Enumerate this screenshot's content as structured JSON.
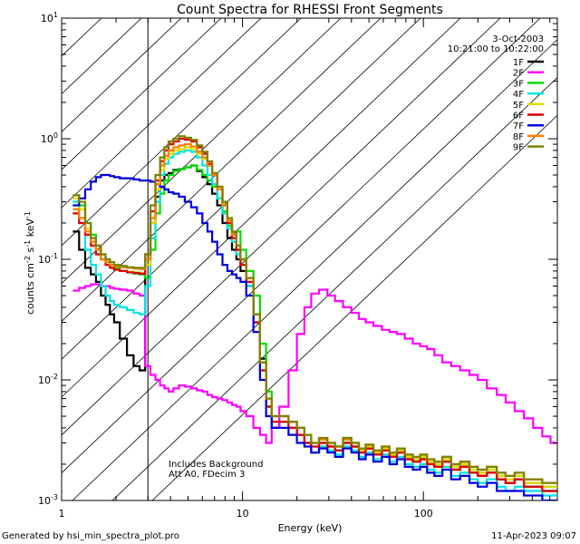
{
  "chart_data": {
    "type": "line",
    "title": "Count Spectra for RHESSI Front Segments",
    "xlabel": "Energy (keV)",
    "ylabel": {
      "base": "counts cm",
      "exp1": "-2",
      "mid1": " s",
      "exp2": "-1",
      "mid2": " keV",
      "exp3": "-1"
    },
    "xscale": "log",
    "yscale": "log",
    "xlim": [
      1,
      550
    ],
    "ylim": [
      0.001,
      10
    ],
    "x_ticks": [
      {
        "value": 1,
        "label": "1"
      },
      {
        "value": 10,
        "label": "10"
      },
      {
        "value": 100,
        "label": "100"
      }
    ],
    "y_ticks": [
      {
        "value": 0.001,
        "base": "10",
        "exp": "-3"
      },
      {
        "value": 0.01,
        "base": "10",
        "exp": "-2"
      },
      {
        "value": 0.1,
        "base": "10",
        "exp": "-1"
      },
      {
        "value": 1,
        "base": "10",
        "exp": "0"
      },
      {
        "value": 10,
        "base": "10",
        "exp": "1"
      }
    ],
    "hatched_region": {
      "x_from": 1,
      "x_to": 3
    },
    "header": {
      "date": "3-Oct-2003",
      "time_range": "10:21:00 to 10:22:00"
    },
    "annotation": {
      "line1": "Includes Background",
      "line2": "Att A0, FDecim 3"
    },
    "x": [
      1.2,
      1.3,
      1.4,
      1.5,
      1.6,
      1.7,
      1.8,
      1.9,
      2.0,
      2.2,
      2.4,
      2.6,
      2.8,
      3.0,
      3.2,
      3.4,
      3.6,
      3.8,
      4.0,
      4.3,
      4.6,
      5.0,
      5.4,
      5.8,
      6.2,
      6.6,
      7.0,
      7.5,
      8.0,
      8.5,
      9.0,
      9.5,
      10,
      11,
      12,
      13,
      14,
      15,
      17,
      19,
      21,
      23,
      25,
      28,
      31,
      34,
      38,
      42,
      46,
      50,
      56,
      62,
      68,
      75,
      83,
      92,
      100,
      110,
      120,
      135,
      150,
      170,
      190,
      210,
      240,
      270,
      300,
      340,
      380,
      430,
      480,
      530
    ],
    "series": [
      {
        "name": "1F",
        "color": "#000000",
        "values": [
          0.17,
          0.12,
          0.085,
          0.075,
          0.065,
          0.05,
          0.042,
          0.035,
          0.03,
          0.022,
          0.016,
          0.013,
          0.012,
          0.11,
          0.2,
          0.33,
          0.45,
          0.5,
          0.52,
          0.55,
          0.56,
          0.58,
          0.6,
          0.54,
          0.48,
          0.42,
          0.35,
          0.28,
          0.2,
          0.15,
          0.12,
          0.1,
          0.08,
          0.06,
          0.03,
          0.015,
          0.006,
          0.004,
          0.0045,
          0.004,
          0.0035,
          0.003,
          0.0025,
          0.003,
          0.0028,
          0.0026,
          0.003,
          0.0028,
          0.0025,
          0.0027,
          0.0024,
          0.0026,
          0.0023,
          0.0025,
          0.0022,
          0.0021,
          0.0022,
          0.002,
          0.0019,
          0.0021,
          0.0018,
          0.0019,
          0.0017,
          0.0016,
          0.0017,
          0.0015,
          0.0014,
          0.0015,
          0.0013,
          0.0013,
          0.0012,
          0.0012
        ]
      },
      {
        "name": "2F",
        "color": "#ff00ff",
        "values": [
          0.055,
          0.058,
          0.06,
          0.062,
          0.062,
          0.06,
          0.06,
          0.058,
          0.057,
          0.056,
          0.055,
          0.052,
          0.05,
          0.013,
          0.011,
          0.01,
          0.009,
          0.0085,
          0.008,
          0.0085,
          0.009,
          0.0088,
          0.0085,
          0.0082,
          0.008,
          0.0075,
          0.0072,
          0.007,
          0.0068,
          0.0065,
          0.0062,
          0.006,
          0.0055,
          0.005,
          0.004,
          0.0035,
          0.003,
          0.004,
          0.006,
          0.012,
          0.024,
          0.04,
          0.052,
          0.056,
          0.05,
          0.045,
          0.04,
          0.036,
          0.032,
          0.03,
          0.028,
          0.026,
          0.025,
          0.024,
          0.022,
          0.02,
          0.019,
          0.018,
          0.016,
          0.014,
          0.013,
          0.012,
          0.011,
          0.01,
          0.0085,
          0.0075,
          0.0065,
          0.0055,
          0.0048,
          0.004,
          0.0034,
          0.003
        ]
      },
      {
        "name": "3F",
        "color": "#00dd00",
        "values": [
          0.34,
          0.28,
          0.2,
          0.16,
          0.13,
          0.11,
          0.1,
          0.09,
          0.085,
          0.08,
          0.078,
          0.076,
          0.075,
          0.07,
          0.12,
          0.24,
          0.35,
          0.45,
          0.5,
          0.54,
          0.56,
          0.58,
          0.6,
          0.55,
          0.5,
          0.45,
          0.4,
          0.32,
          0.25,
          0.19,
          0.16,
          0.17,
          0.12,
          0.08,
          0.05,
          0.02,
          0.008,
          0.005,
          0.005,
          0.0045,
          0.004,
          0.0035,
          0.003,
          0.0032,
          0.003,
          0.0028,
          0.0033,
          0.003,
          0.0027,
          0.0029,
          0.0025,
          0.0027,
          0.0024,
          0.0026,
          0.0023,
          0.0022,
          0.0023,
          0.0021,
          0.002,
          0.0022,
          0.0019,
          0.002,
          0.0018,
          0.0017,
          0.0018,
          0.0016,
          0.0015,
          0.0016,
          0.0014,
          0.0014,
          0.0013,
          0.0013
        ]
      },
      {
        "name": "4F",
        "color": "#00e5e5",
        "values": [
          0.3,
          0.2,
          0.12,
          0.09,
          0.075,
          0.06,
          0.05,
          0.045,
          0.042,
          0.04,
          0.038,
          0.036,
          0.035,
          0.06,
          0.15,
          0.3,
          0.5,
          0.62,
          0.7,
          0.75,
          0.78,
          0.8,
          0.78,
          0.7,
          0.6,
          0.5,
          0.42,
          0.32,
          0.24,
          0.18,
          0.14,
          0.11,
          0.09,
          0.06,
          0.03,
          0.012,
          0.006,
          0.0045,
          0.0045,
          0.004,
          0.0035,
          0.003,
          0.0025,
          0.0028,
          0.0026,
          0.0024,
          0.0028,
          0.0026,
          0.0023,
          0.0025,
          0.0022,
          0.0024,
          0.0021,
          0.0023,
          0.002,
          0.0019,
          0.002,
          0.0018,
          0.0017,
          0.0019,
          0.0016,
          0.0017,
          0.0015,
          0.0014,
          0.0015,
          0.0013,
          0.0012,
          0.0013,
          0.0012,
          0.0012,
          0.0011,
          0.0011
        ]
      },
      {
        "name": "5F",
        "color": "#dddd00",
        "values": [
          0.32,
          0.26,
          0.18,
          0.14,
          0.12,
          0.1,
          0.09,
          0.085,
          0.082,
          0.08,
          0.079,
          0.078,
          0.077,
          0.09,
          0.2,
          0.38,
          0.55,
          0.68,
          0.75,
          0.8,
          0.82,
          0.85,
          0.82,
          0.75,
          0.68,
          0.6,
          0.5,
          0.38,
          0.28,
          0.21,
          0.16,
          0.13,
          0.1,
          0.07,
          0.035,
          0.014,
          0.007,
          0.005,
          0.005,
          0.0045,
          0.004,
          0.0035,
          0.003,
          0.0032,
          0.003,
          0.0028,
          0.0032,
          0.003,
          0.0026,
          0.0028,
          0.0025,
          0.0027,
          0.0024,
          0.0026,
          0.0023,
          0.0022,
          0.0023,
          0.0021,
          0.002,
          0.0022,
          0.0019,
          0.002,
          0.0018,
          0.0017,
          0.0018,
          0.0016,
          0.0015,
          0.0016,
          0.0014,
          0.0014,
          0.0013,
          0.0013
        ]
      },
      {
        "name": "6F",
        "color": "#dd0000",
        "values": [
          0.24,
          0.2,
          0.16,
          0.13,
          0.11,
          0.1,
          0.09,
          0.085,
          0.082,
          0.08,
          0.078,
          0.077,
          0.076,
          0.1,
          0.25,
          0.45,
          0.65,
          0.8,
          0.9,
          0.95,
          1.0,
          0.98,
          0.95,
          0.85,
          0.75,
          0.62,
          0.5,
          0.38,
          0.28,
          0.2,
          0.15,
          0.12,
          0.09,
          0.065,
          0.03,
          0.012,
          0.006,
          0.0045,
          0.0045,
          0.004,
          0.0035,
          0.003,
          0.0028,
          0.003,
          0.0028,
          0.0026,
          0.003,
          0.0028,
          0.0025,
          0.0027,
          0.0024,
          0.0026,
          0.0023,
          0.0025,
          0.0022,
          0.0021,
          0.0022,
          0.002,
          0.0019,
          0.0021,
          0.0018,
          0.0019,
          0.0017,
          0.0016,
          0.0017,
          0.0015,
          0.0014,
          0.0015,
          0.0013,
          0.0013,
          0.0012,
          0.0012
        ]
      },
      {
        "name": "7F",
        "color": "#0000dd",
        "values": [
          0.28,
          0.32,
          0.38,
          0.44,
          0.48,
          0.5,
          0.5,
          0.49,
          0.48,
          0.47,
          0.47,
          0.46,
          0.45,
          0.45,
          0.44,
          0.42,
          0.4,
          0.38,
          0.36,
          0.35,
          0.33,
          0.3,
          0.27,
          0.24,
          0.2,
          0.17,
          0.14,
          0.11,
          0.09,
          0.08,
          0.075,
          0.07,
          0.065,
          0.05,
          0.025,
          0.01,
          0.005,
          0.004,
          0.004,
          0.0035,
          0.003,
          0.0028,
          0.0025,
          0.0027,
          0.0025,
          0.0023,
          0.0027,
          0.0025,
          0.0022,
          0.0024,
          0.0021,
          0.0023,
          0.002,
          0.0022,
          0.0019,
          0.0018,
          0.0019,
          0.0017,
          0.0016,
          0.0018,
          0.0015,
          0.0016,
          0.0014,
          0.0013,
          0.0014,
          0.0012,
          0.0012,
          0.0012,
          0.0011,
          0.0011,
          0.001,
          0.001
        ]
      },
      {
        "name": "8F",
        "color": "#ff7f00",
        "values": [
          0.26,
          0.22,
          0.17,
          0.14,
          0.12,
          0.1,
          0.095,
          0.09,
          0.088,
          0.086,
          0.085,
          0.084,
          0.083,
          0.1,
          0.22,
          0.42,
          0.6,
          0.72,
          0.8,
          0.85,
          0.88,
          0.9,
          0.86,
          0.78,
          0.7,
          0.6,
          0.5,
          0.38,
          0.28,
          0.21,
          0.16,
          0.13,
          0.1,
          0.07,
          0.035,
          0.014,
          0.007,
          0.005,
          0.005,
          0.0045,
          0.004,
          0.0035,
          0.003,
          0.0032,
          0.003,
          0.0028,
          0.0032,
          0.003,
          0.0027,
          0.0029,
          0.0026,
          0.0028,
          0.0025,
          0.0027,
          0.0024,
          0.0023,
          0.0024,
          0.0022,
          0.0021,
          0.0023,
          0.002,
          0.0021,
          0.0019,
          0.0018,
          0.0019,
          0.0017,
          0.0016,
          0.0017,
          0.0015,
          0.0015,
          0.0014,
          0.0014
        ]
      },
      {
        "name": "9F",
        "color": "#808000",
        "values": [
          0.34,
          0.3,
          0.2,
          0.15,
          0.13,
          0.11,
          0.1,
          0.095,
          0.09,
          0.088,
          0.086,
          0.085,
          0.085,
          0.11,
          0.28,
          0.5,
          0.7,
          0.85,
          0.95,
          1.0,
          1.05,
          1.02,
          0.98,
          0.88,
          0.78,
          0.65,
          0.52,
          0.4,
          0.3,
          0.22,
          0.17,
          0.13,
          0.1,
          0.07,
          0.035,
          0.014,
          0.007,
          0.005,
          0.005,
          0.0045,
          0.004,
          0.0035,
          0.003,
          0.0033,
          0.003,
          0.0028,
          0.0033,
          0.003,
          0.0027,
          0.0029,
          0.0026,
          0.0028,
          0.0025,
          0.0027,
          0.0024,
          0.0023,
          0.0024,
          0.0022,
          0.0021,
          0.0023,
          0.002,
          0.0021,
          0.0019,
          0.0018,
          0.0019,
          0.0017,
          0.0016,
          0.0017,
          0.0015,
          0.0015,
          0.0014,
          0.0014
        ]
      }
    ]
  },
  "footer": {
    "generated_by": "Generated by hsi_min_spectra_plot.pro",
    "timestamp": "11-Apr-2023 09:07"
  }
}
